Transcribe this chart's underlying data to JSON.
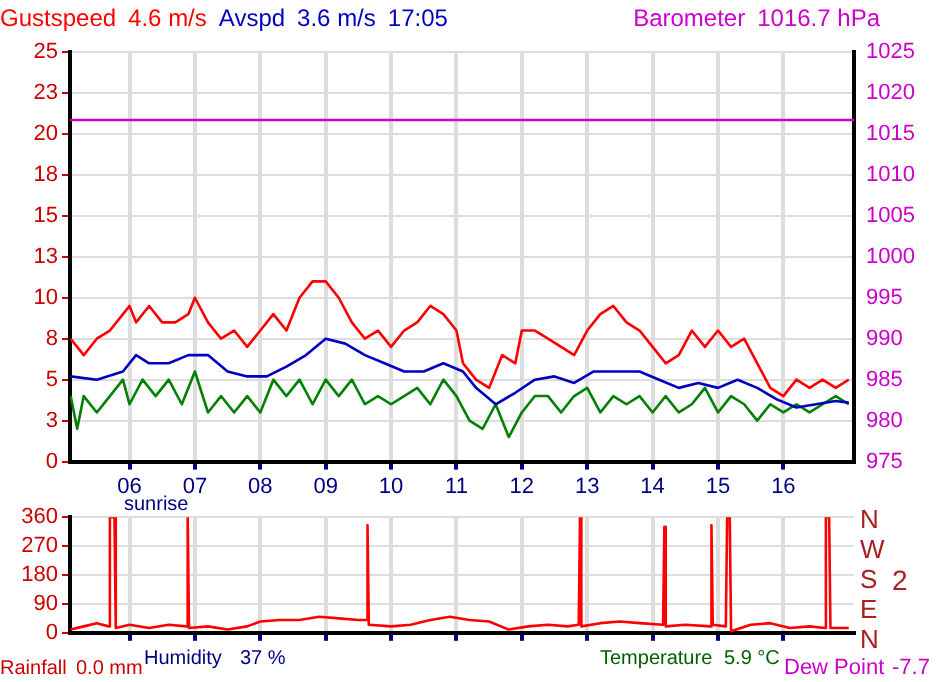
{
  "chart_data": [
    {
      "type": "line",
      "grid": true,
      "xlim": [
        5.09,
        17.08
      ],
      "xticks": [
        {
          "value": 6,
          "label": "06"
        },
        {
          "value": 7,
          "label": "07"
        },
        {
          "value": 8,
          "label": "08"
        },
        {
          "value": 9,
          "label": "09"
        },
        {
          "value": 10,
          "label": "10"
        },
        {
          "value": 11,
          "label": "11"
        },
        {
          "value": 12,
          "label": "12"
        },
        {
          "value": 13,
          "label": "13"
        },
        {
          "value": 14,
          "label": "14"
        },
        {
          "value": 15,
          "label": "15"
        },
        {
          "value": 16,
          "label": "16"
        }
      ],
      "ylim": [
        0,
        25
      ],
      "yticks": [
        0,
        {
          "value": 2.5,
          "label": "3"
        },
        5,
        {
          "value": 7.5,
          "label": "8"
        },
        10,
        {
          "value": 12.5,
          "label": "13"
        },
        15,
        {
          "value": 17.5,
          "label": "18"
        },
        20,
        {
          "value": 22.5,
          "label": "23"
        },
        25
      ],
      "y2lim": [
        975,
        1025
      ],
      "y2ticks": [
        975,
        980,
        985,
        990,
        995,
        1000,
        1005,
        1010,
        1015,
        1020,
        1025
      ],
      "annotations": [
        "4.6 m/s",
        "3.6 m/s",
        "17:05",
        "1016.7 hPa",
        "sunrise"
      ],
      "series": [
        {
          "name": "Gustspeed",
          "color": "#ff0000",
          "x": [
            5.1,
            5.3,
            5.5,
            5.7,
            5.9,
            6.0,
            6.1,
            6.3,
            6.5,
            6.7,
            6.9,
            7.0,
            7.2,
            7.4,
            7.6,
            7.8,
            8.0,
            8.2,
            8.4,
            8.6,
            8.8,
            9.0,
            9.2,
            9.4,
            9.6,
            9.8,
            10.0,
            10.2,
            10.4,
            10.6,
            10.8,
            11.0,
            11.1,
            11.3,
            11.5,
            11.7,
            11.9,
            12.0,
            12.2,
            12.4,
            12.6,
            12.8,
            13.0,
            13.2,
            13.4,
            13.6,
            13.8,
            14.0,
            14.2,
            14.4,
            14.6,
            14.8,
            15.0,
            15.2,
            15.4,
            15.6,
            15.8,
            16.0,
            16.2,
            16.4,
            16.6,
            16.8,
            17.0
          ],
          "values": [
            7.5,
            6.5,
            7.5,
            8,
            9,
            9.5,
            8.5,
            9.5,
            8.5,
            8.5,
            9,
            10,
            8.5,
            7.5,
            8,
            7,
            8,
            9,
            8,
            10,
            11,
            11,
            10,
            8.5,
            7.5,
            8,
            7,
            8,
            8.5,
            9.5,
            9,
            8,
            6,
            5,
            4.5,
            6.5,
            6,
            8,
            8,
            7.5,
            7,
            6.5,
            8,
            9,
            9.5,
            8.5,
            8,
            7,
            6,
            6.5,
            8,
            7,
            8,
            7,
            7.5,
            6,
            4.5,
            4,
            5,
            4.5,
            5,
            4.5,
            5
          ]
        },
        {
          "name": "Avspd",
          "color": "#0000c0",
          "x": [
            5.1,
            5.5,
            5.9,
            6.1,
            6.3,
            6.6,
            6.9,
            7.2,
            7.5,
            7.8,
            8.1,
            8.4,
            8.7,
            9.0,
            9.3,
            9.6,
            9.9,
            10.2,
            10.5,
            10.8,
            11.1,
            11.3,
            11.6,
            11.9,
            12.2,
            12.5,
            12.8,
            13.1,
            13.5,
            13.8,
            14.1,
            14.4,
            14.7,
            15.0,
            15.3,
            15.6,
            15.9,
            16.2,
            16.5,
            16.8,
            17.0
          ],
          "values": [
            5.2,
            5,
            5.5,
            6.5,
            6,
            6,
            6.5,
            6.5,
            5.5,
            5.2,
            5.2,
            5.8,
            6.5,
            7.5,
            7.2,
            6.5,
            6,
            5.5,
            5.5,
            6,
            5.5,
            4.5,
            3.5,
            4.2,
            5,
            5.2,
            4.8,
            5.5,
            5.5,
            5.5,
            5,
            4.5,
            4.8,
            4.5,
            5,
            4.5,
            3.8,
            3.3,
            3.5,
            3.7,
            3.6
          ]
        },
        {
          "color": "#008000",
          "x": [
            5.1,
            5.2,
            5.3,
            5.5,
            5.7,
            5.9,
            6.0,
            6.2,
            6.4,
            6.6,
            6.8,
            7.0,
            7.2,
            7.4,
            7.6,
            7.8,
            8.0,
            8.2,
            8.4,
            8.6,
            8.8,
            9.0,
            9.2,
            9.4,
            9.6,
            9.8,
            10.0,
            10.2,
            10.4,
            10.6,
            10.8,
            11.0,
            11.2,
            11.4,
            11.6,
            11.8,
            12.0,
            12.2,
            12.4,
            12.6,
            12.8,
            13.0,
            13.2,
            13.4,
            13.6,
            13.8,
            14.0,
            14.2,
            14.4,
            14.6,
            14.8,
            15.0,
            15.2,
            15.4,
            15.6,
            15.8,
            16.0,
            16.2,
            16.4,
            16.6,
            16.8,
            17.0
          ],
          "values": [
            4,
            2,
            4,
            3,
            4,
            5,
            3.5,
            5,
            4,
            5,
            3.5,
            5.5,
            3,
            4,
            3,
            4,
            3,
            5,
            4,
            5,
            3.5,
            5,
            4,
            5,
            3.5,
            4,
            3.5,
            4,
            4.5,
            3.5,
            5,
            4,
            2.5,
            2,
            3.5,
            1.5,
            3,
            4,
            4,
            3,
            4,
            4.5,
            3,
            4,
            3.5,
            4,
            3,
            4,
            3,
            3.5,
            4.5,
            3,
            4,
            3.5,
            2.5,
            3.5,
            3,
            3.5,
            3,
            3.5,
            4,
            3.5
          ]
        },
        {
          "name": "Barometer",
          "color": "#cc00cc",
          "axis": "y2",
          "x": [
            5.09,
            17.08
          ],
          "values": [
            1016.7,
            1016.7
          ]
        }
      ]
    },
    {
      "type": "line",
      "grid": true,
      "tick_labels": "y",
      "xlim": [
        5.09,
        17.08
      ],
      "xticks": [
        6,
        7,
        8,
        9,
        10,
        11,
        12,
        13,
        14,
        15,
        16
      ],
      "ylim": [
        0,
        360
      ],
      "yticks": [
        0,
        90,
        180,
        270,
        360
      ],
      "annotations": [
        "N",
        "E",
        "S",
        "W",
        "N",
        "2",
        "Rainfall",
        "0.0 mm",
        "Humidity",
        "37 %",
        "Temperature",
        "5.9 °C",
        "Dew Point",
        "-7.7"
      ],
      "series": [
        {
          "color": "#ff0000",
          "x": [
            5.1,
            5.3,
            5.5,
            5.68,
            5.7,
            5.77,
            5.79,
            6.0,
            6.3,
            6.6,
            6.87,
            6.89,
            6.91,
            7.2,
            7.5,
            7.8,
            8.0,
            8.3,
            8.6,
            8.9,
            9.2,
            9.5,
            9.62,
            9.64,
            9.66,
            10.0,
            10.3,
            10.6,
            10.9,
            11.2,
            11.5,
            11.8,
            12.1,
            12.4,
            12.7,
            12.87,
            12.89,
            12.91,
            13.2,
            13.5,
            13.8,
            14.16,
            14.18,
            14.2,
            14.5,
            14.88,
            14.9,
            14.92,
            15.12,
            15.14,
            15.18,
            15.2,
            15.5,
            15.8,
            16.1,
            16.4,
            16.63,
            16.65,
            16.7,
            16.72,
            17.0
          ],
          "values": [
            10,
            20,
            30,
            20,
            360,
            360,
            15,
            25,
            15,
            25,
            20,
            360,
            15,
            20,
            10,
            20,
            35,
            40,
            40,
            50,
            45,
            40,
            40,
            335,
            25,
            20,
            25,
            40,
            50,
            40,
            35,
            10,
            20,
            25,
            20,
            25,
            360,
            20,
            30,
            35,
            30,
            25,
            330,
            20,
            25,
            20,
            335,
            25,
            20,
            360,
            360,
            5,
            25,
            30,
            15,
            20,
            15,
            360,
            360,
            15,
            15
          ]
        }
      ]
    }
  ]
}
